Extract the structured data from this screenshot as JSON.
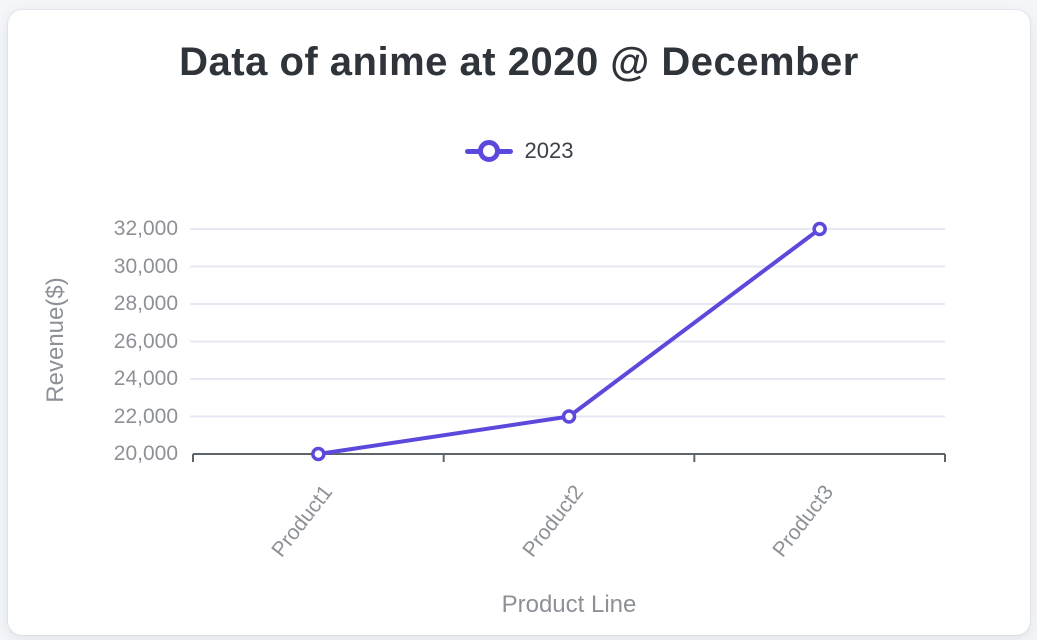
{
  "card": {
    "background": "#ffffff",
    "page_background": "#f4f6f9"
  },
  "chart": {
    "title": "Data of anime at 2020 @ December",
    "legend": {
      "label": "2023"
    },
    "xlabel": "Product Line",
    "ylabel": "Revenue($)"
  },
  "chart_data": {
    "type": "line",
    "title": "Data of anime at 2020 @ December",
    "categories": [
      "Product1",
      "Product2",
      "Product3"
    ],
    "series": [
      {
        "name": "2023",
        "values": [
          20000,
          22000,
          32000
        ],
        "color": "#5a49dc",
        "marker": "hollow-circle"
      }
    ],
    "xlabel": "Product Line",
    "ylabel": "Revenue($)",
    "ylim": [
      20000,
      32000
    ],
    "ytick_step": 2000,
    "yticks": [
      20000,
      22000,
      24000,
      26000,
      28000,
      30000,
      32000
    ],
    "ytick_labels": [
      "20,000",
      "22,000",
      "24,000",
      "26,000",
      "28,000",
      "30,000",
      "32,000"
    ],
    "grid": "horizontal",
    "legend_position": "top"
  },
  "colors": {
    "accent": "#5a49dc",
    "grid": "#e7e8f3",
    "axis": "#606569",
    "tick_text": "#8d9197",
    "title_text": "#2f343a"
  }
}
